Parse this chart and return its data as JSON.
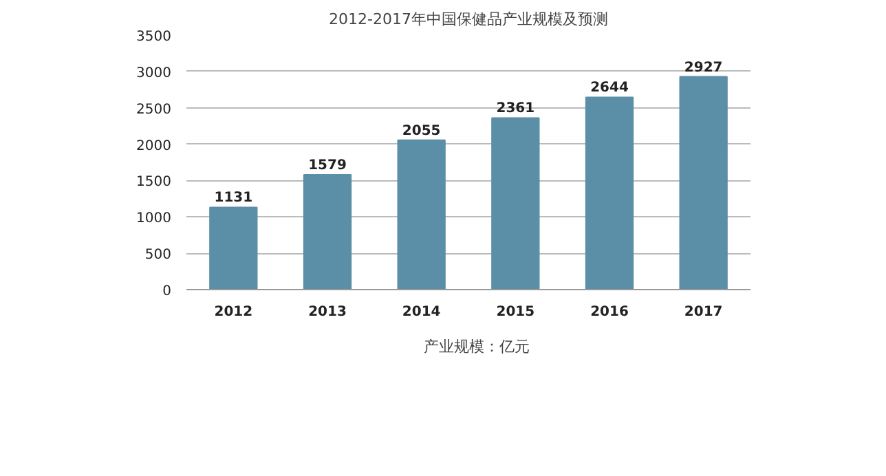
{
  "chart_data": {
    "type": "bar",
    "title": "2012-2017年中国保健品产业规模及预测",
    "categories": [
      "2012",
      "2013",
      "2014",
      "2015",
      "2016",
      "2017"
    ],
    "series": [
      {
        "name": "产业规模：亿元",
        "color": "#5b8fa8",
        "values": [
          1131,
          1579,
          2055,
          2361,
          2644,
          2927
        ]
      }
    ],
    "ylim": [
      0,
      3500
    ],
    "yticks": [
      0,
      500,
      1000,
      1500,
      2000,
      2500,
      3000,
      3500
    ],
    "grid": "y",
    "legend": "bottom",
    "data_labels": true
  }
}
